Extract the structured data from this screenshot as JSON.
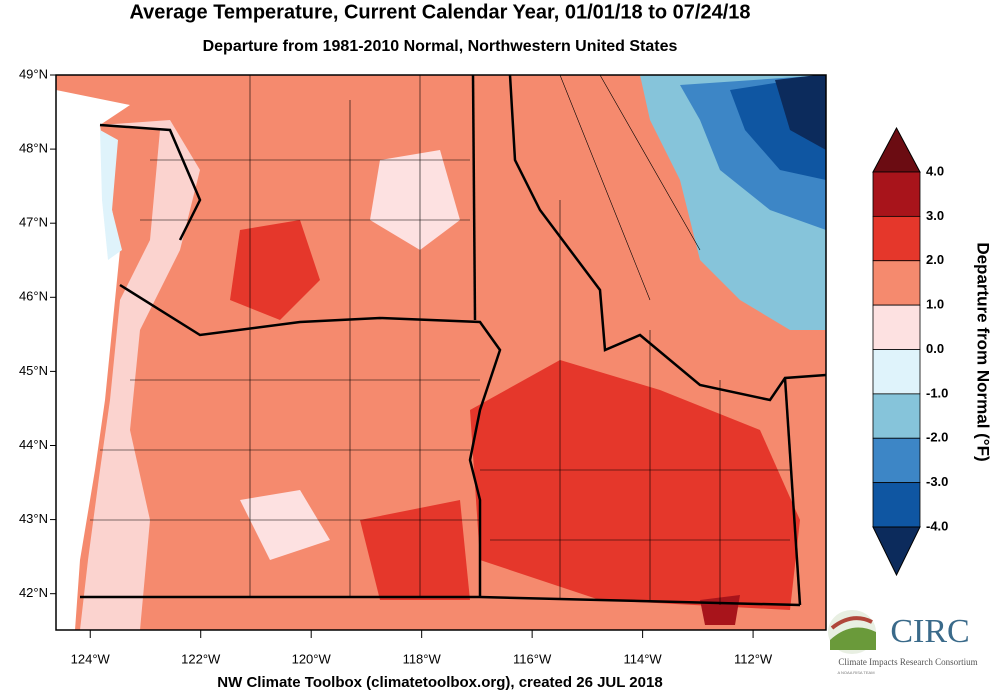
{
  "title": "Average Temperature, Current Calendar Year, 01/01/18 to 07/24/18",
  "subtitle": "Departure from 1981-2010 Normal, Northwestern United States",
  "map": {
    "lat_range": [
      41.51,
      49
    ],
    "lon_range": [
      -124.62,
      -110.68
    ],
    "lat_ticks": [
      {
        "value": 49,
        "label": "49°N"
      },
      {
        "value": 48,
        "label": "48°N"
      },
      {
        "value": 47,
        "label": "47°N"
      },
      {
        "value": 46,
        "label": "46°N"
      },
      {
        "value": 45,
        "label": "45°N"
      },
      {
        "value": 44,
        "label": "44°N"
      },
      {
        "value": 43,
        "label": "43°N"
      },
      {
        "value": 42,
        "label": "42°N"
      }
    ],
    "lon_ticks": [
      {
        "value": -124,
        "label": "124°W"
      },
      {
        "value": -122,
        "label": "122°W"
      },
      {
        "value": -120,
        "label": "120°W"
      },
      {
        "value": -118,
        "label": "118°W"
      },
      {
        "value": -116,
        "label": "116°W"
      },
      {
        "value": -114,
        "label": "114°W"
      },
      {
        "value": -112,
        "label": "112°W"
      }
    ]
  },
  "colorbar": {
    "title": "Departure from Normal (°F)",
    "ticks": [
      {
        "value": 4,
        "label": "4.0"
      },
      {
        "value": 3,
        "label": "3.0"
      },
      {
        "value": 2,
        "label": "2.0"
      },
      {
        "value": 1,
        "label": "1.0"
      },
      {
        "value": 0,
        "label": "0.0"
      },
      {
        "value": -1,
        "label": "-1.0"
      },
      {
        "value": -2,
        "label": "-2.0"
      },
      {
        "value": -3,
        "label": "-3.0"
      },
      {
        "value": -4,
        "label": "-4.0"
      }
    ],
    "colors": [
      "#6b0c12",
      "#a8141b",
      "#e5372b",
      "#f58a6e",
      "#fde1e1",
      "#dff3fb",
      "#86c4da",
      "#3d86c6",
      "#0f56a2",
      "#0c2b5c"
    ]
  },
  "credit": "NW Climate Toolbox (climatetoolbox.org), created 26 JUL 2018",
  "logo": {
    "name": "CIRC",
    "subtitle": "Climate Impacts Research Consortium",
    "tagline": "A NOAA RISA TEAM"
  }
}
